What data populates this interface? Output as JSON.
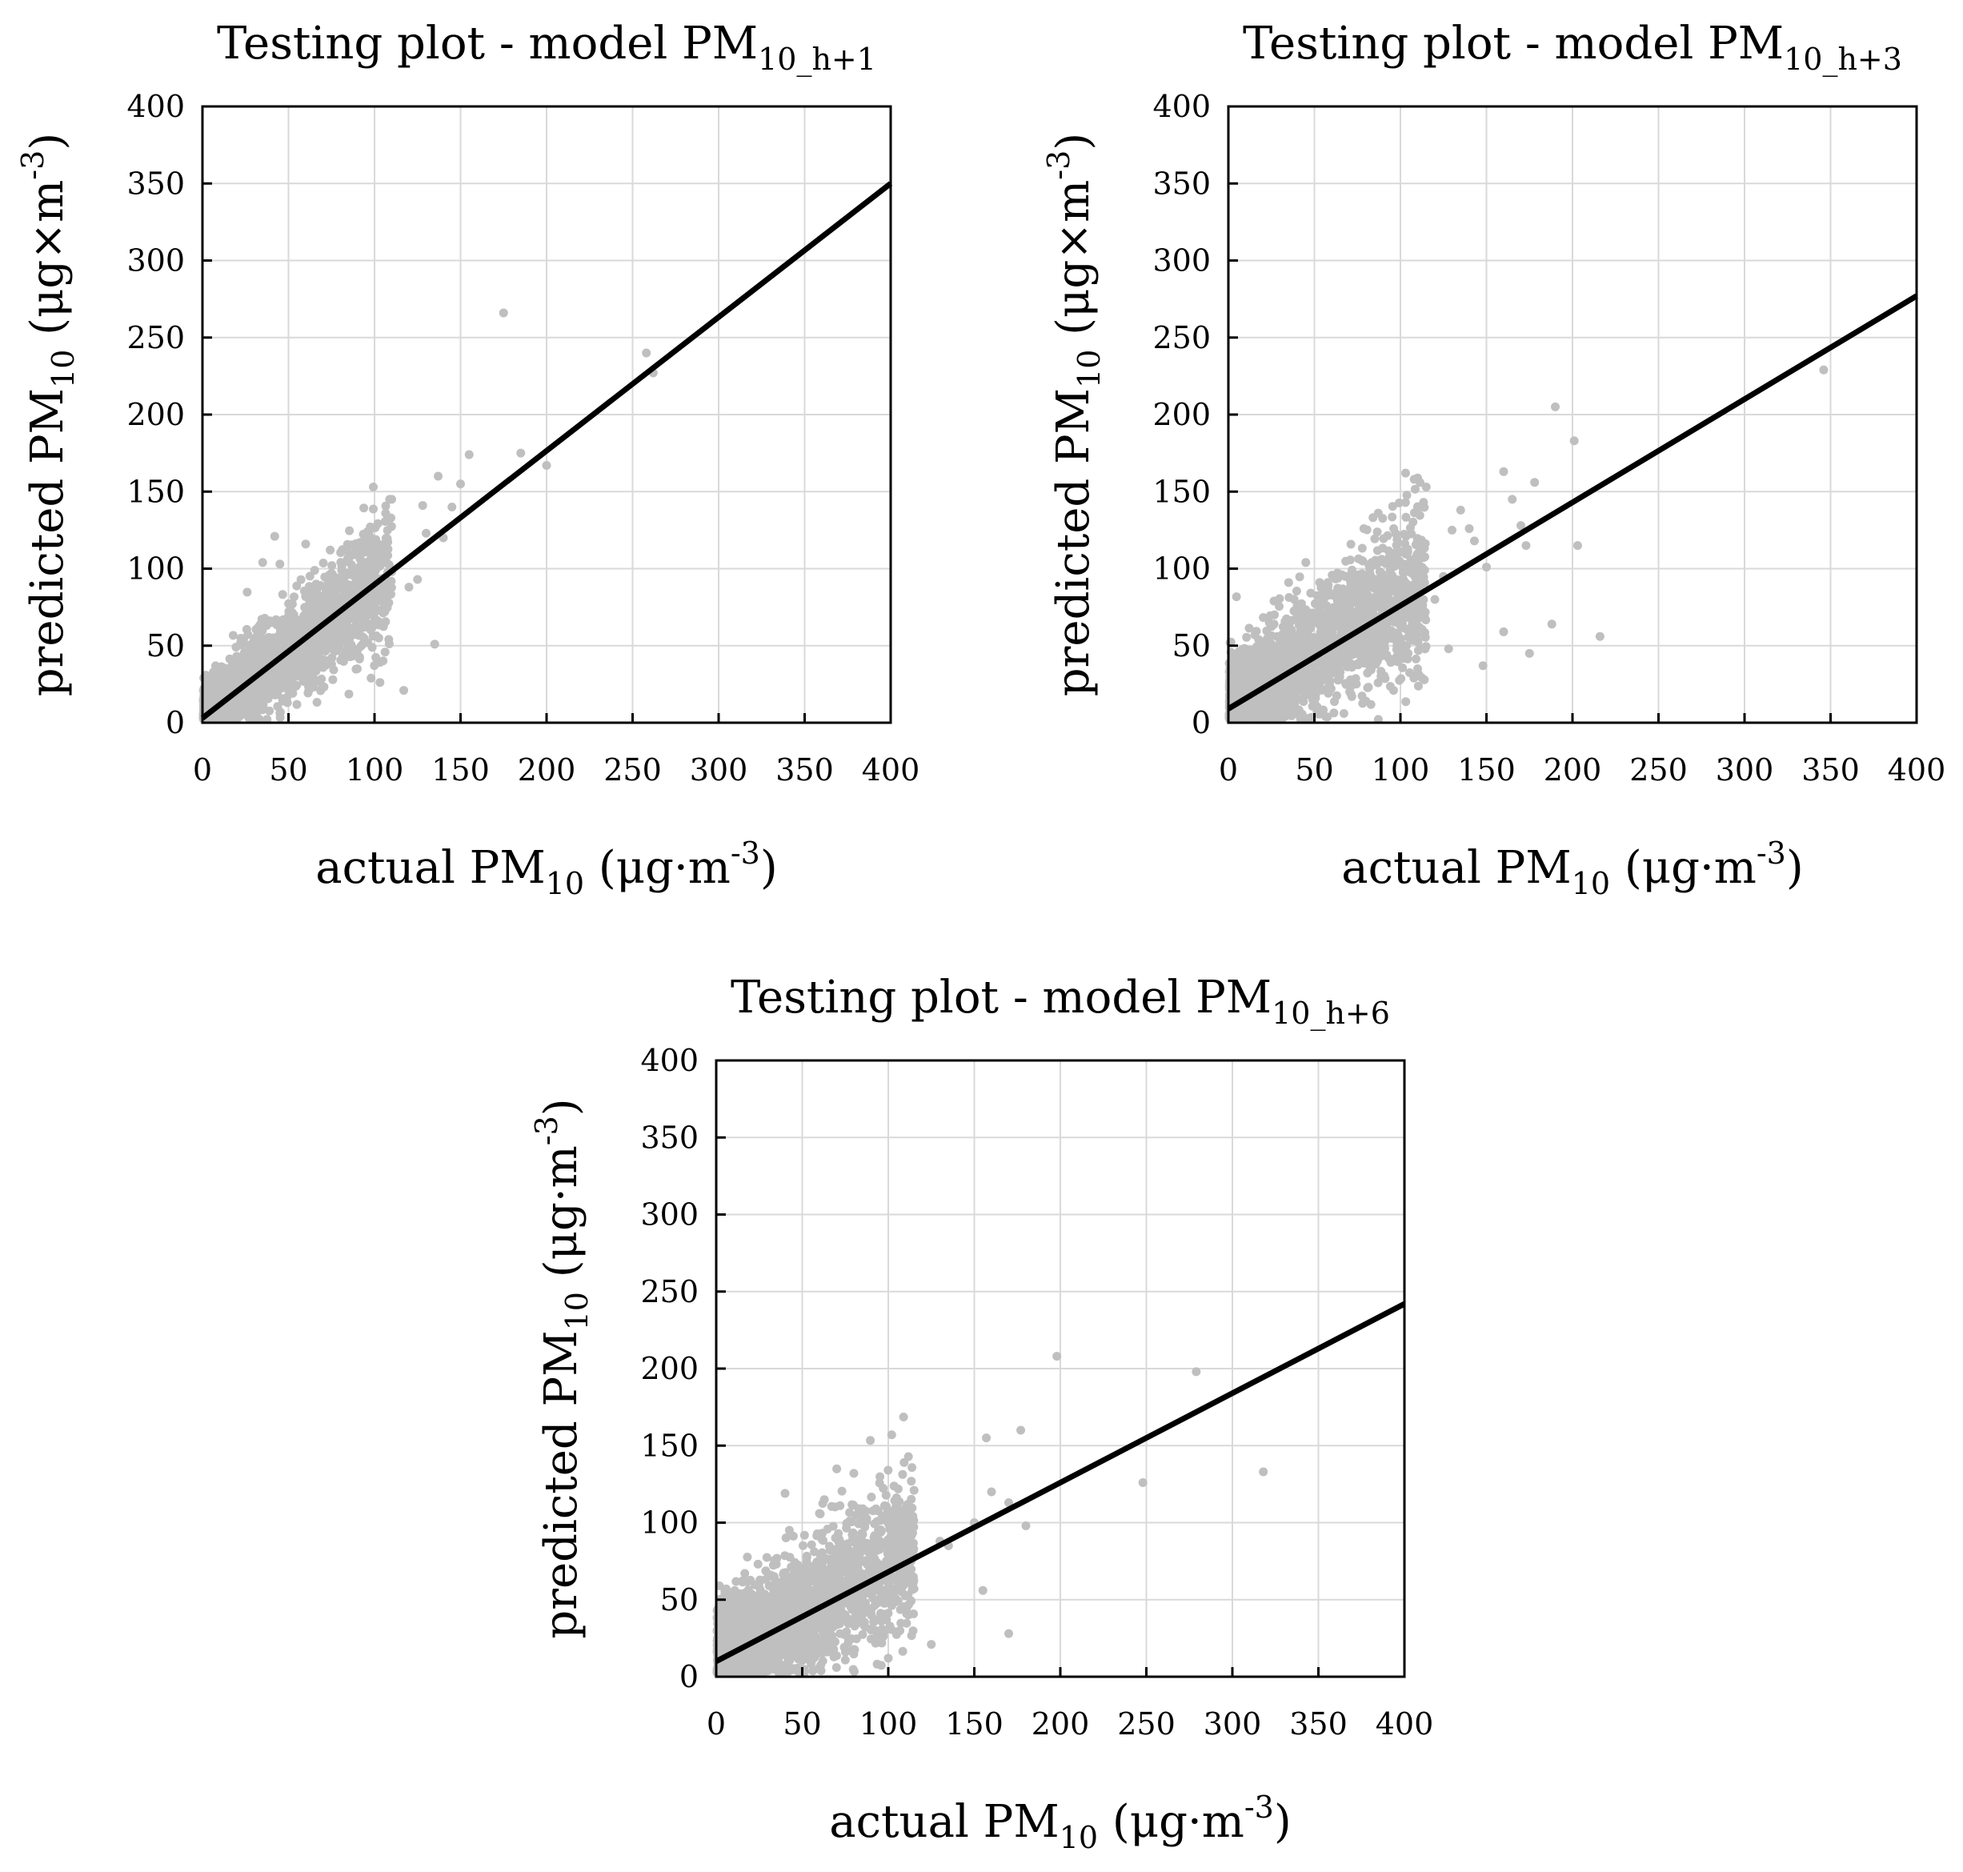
{
  "figure_domain": "Chart",
  "chart_data": [
    {
      "type": "scatter",
      "title_main": "Testing plot - model PM",
      "title_sub": "10_h+1",
      "xlabel_main": "actual PM",
      "xlabel_sub": "10",
      "xlabel_unit": " (μg·m",
      "xlabel_exp": "-3",
      "xlabel_close": ")",
      "ylabel_main": "predicted PM",
      "ylabel_sub": "10",
      "ylabel_unit": " (μg×m",
      "ylabel_exp": "-3",
      "ylabel_close": ")",
      "xlim": [
        0,
        400
      ],
      "ylim": [
        0,
        400
      ],
      "xticks": [
        "0",
        "50",
        "100",
        "150",
        "200",
        "250",
        "300",
        "350",
        "400"
      ],
      "yticks": [
        "0",
        "50",
        "100",
        "150",
        "200",
        "250",
        "300",
        "350",
        "400"
      ],
      "grid": true,
      "fit_line": {
        "x": [
          0,
          400
        ],
        "y": [
          3,
          350
        ]
      },
      "cloud": {
        "n": 2200,
        "xmax": 110,
        "slope": 0.85,
        "intercept": 5,
        "spread": 9
      },
      "outliers": [
        [
          175,
          266
        ],
        [
          258,
          240
        ],
        [
          262,
          227
        ],
        [
          200,
          167
        ],
        [
          185,
          175
        ],
        [
          155,
          174
        ],
        [
          137,
          160
        ],
        [
          135,
          51
        ],
        [
          117,
          21
        ],
        [
          90,
          35
        ],
        [
          128,
          141
        ],
        [
          145,
          140
        ],
        [
          150,
          155
        ],
        [
          120,
          88
        ],
        [
          110,
          145
        ],
        [
          98,
          120
        ],
        [
          42,
          121
        ],
        [
          60,
          116
        ],
        [
          35,
          104
        ],
        [
          45,
          103
        ],
        [
          130,
          123
        ],
        [
          125,
          93
        ],
        [
          140,
          120
        ]
      ]
    },
    {
      "type": "scatter",
      "title_main": "Testing plot - model PM",
      "title_sub": "10_h+3",
      "xlabel_main": "actual PM",
      "xlabel_sub": "10",
      "xlabel_unit": " (μg·m",
      "xlabel_exp": "-3",
      "xlabel_close": ")",
      "ylabel_main": "predicted PM",
      "ylabel_sub": "10",
      "ylabel_unit": " (μg×m",
      "ylabel_exp": "-3",
      "ylabel_close": ")",
      "xlim": [
        0,
        400
      ],
      "ylim": [
        0,
        400
      ],
      "xticks": [
        "0",
        "50",
        "100",
        "150",
        "200",
        "250",
        "300",
        "350",
        "400"
      ],
      "yticks": [
        "0",
        "50",
        "100",
        "150",
        "200",
        "250",
        "300",
        "350",
        "400"
      ],
      "grid": true,
      "fit_line": {
        "x": [
          0,
          400
        ],
        "y": [
          9,
          277
        ]
      },
      "cloud": {
        "n": 2200,
        "xmax": 115,
        "slope": 0.68,
        "intercept": 12,
        "spread": 14
      },
      "outliers": [
        [
          346,
          229
        ],
        [
          190,
          205
        ],
        [
          201,
          183
        ],
        [
          203,
          115
        ],
        [
          216,
          56
        ],
        [
          188,
          64
        ],
        [
          175,
          45
        ],
        [
          178,
          156
        ],
        [
          160,
          163
        ],
        [
          165,
          145
        ],
        [
          170,
          128
        ],
        [
          148,
          37
        ],
        [
          103,
          162
        ],
        [
          108,
          158
        ],
        [
          115,
          153
        ],
        [
          135,
          138
        ],
        [
          150,
          101
        ],
        [
          140,
          126
        ],
        [
          130,
          125
        ],
        [
          160,
          59
        ],
        [
          125,
          95
        ],
        [
          96,
          21
        ],
        [
          45,
          104
        ],
        [
          35,
          91
        ],
        [
          120,
          80
        ],
        [
          110,
          35
        ],
        [
          128,
          48
        ],
        [
          143,
          118
        ],
        [
          173,
          115
        ]
      ]
    },
    {
      "type": "scatter",
      "title_main": "Testing plot - model PM",
      "title_sub": "10_h+6",
      "xlabel_main": "actual PM",
      "xlabel_sub": "10",
      "xlabel_unit": " (μg·m",
      "xlabel_exp": "-3",
      "xlabel_close": ")",
      "ylabel_main": "predicted PM",
      "ylabel_sub": "10",
      "ylabel_unit": " (μg·m",
      "ylabel_exp": "-3",
      "ylabel_close": ")",
      "xlim": [
        0,
        400
      ],
      "ylim": [
        0,
        400
      ],
      "xticks": [
        "0",
        "50",
        "100",
        "150",
        "200",
        "250",
        "300",
        "350",
        "400"
      ],
      "yticks": [
        "0",
        "50",
        "100",
        "150",
        "200",
        "250",
        "300",
        "350",
        "400"
      ],
      "grid": true,
      "fit_line": {
        "x": [
          0,
          400
        ],
        "y": [
          10,
          242
        ]
      },
      "cloud": {
        "n": 2200,
        "xmax": 115,
        "slope": 0.6,
        "intercept": 14,
        "spread": 15
      },
      "outliers": [
        [
          198,
          208
        ],
        [
          279,
          198
        ],
        [
          248,
          126
        ],
        [
          318,
          133
        ],
        [
          170,
          28
        ],
        [
          102,
          157
        ],
        [
          157,
          155
        ],
        [
          177,
          160
        ],
        [
          170,
          113
        ],
        [
          180,
          98
        ],
        [
          160,
          120
        ],
        [
          155,
          56
        ],
        [
          125,
          21
        ],
        [
          95,
          57
        ],
        [
          130,
          88
        ],
        [
          40,
          119
        ],
        [
          60,
          106
        ],
        [
          100,
          12
        ],
        [
          150,
          100
        ],
        [
          80,
          132
        ],
        [
          115,
          121
        ],
        [
          135,
          85
        ]
      ]
    }
  ]
}
